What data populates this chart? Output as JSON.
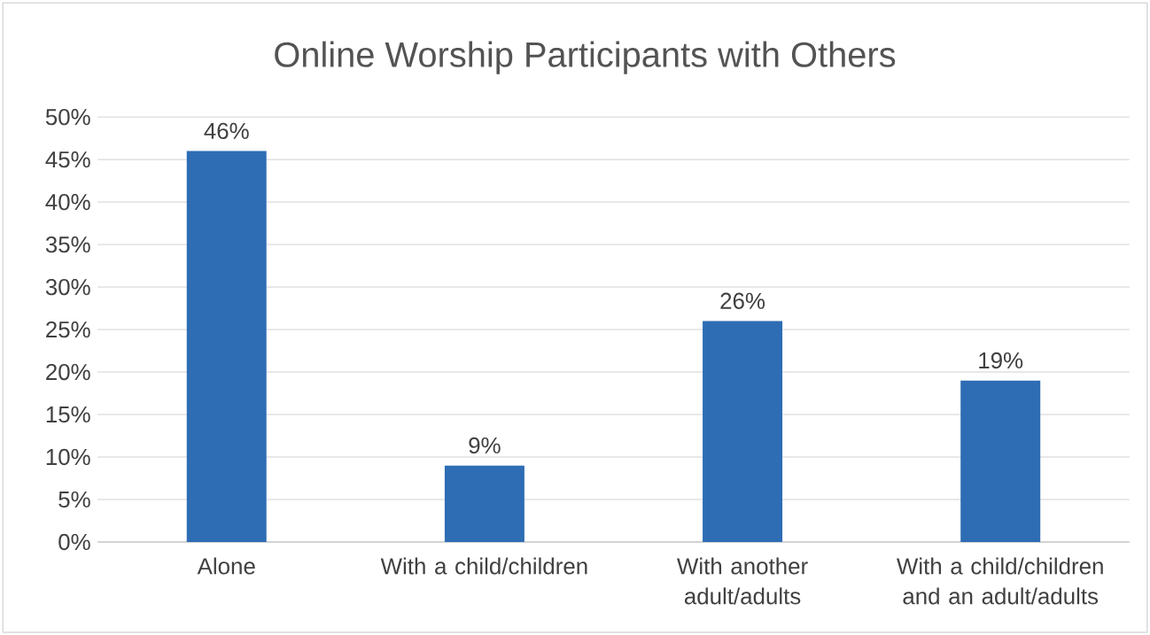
{
  "chart_data": {
    "type": "bar",
    "title": "Online Worship Participants with Others",
    "categories": [
      "Alone",
      "With a child/children",
      "With another adult/adults",
      "With a child/children and an adult/adults"
    ],
    "values": [
      46,
      9,
      26,
      19
    ],
    "value_labels": [
      "46%",
      "9%",
      "26%",
      "19%"
    ],
    "color": "#2e6db4",
    "ylim": [
      0,
      50
    ],
    "yticks": [
      {
        "value": 0,
        "label": "0%"
      },
      {
        "value": 5,
        "label": "5%"
      },
      {
        "value": 10,
        "label": "10%"
      },
      {
        "value": 15,
        "label": "15%"
      },
      {
        "value": 20,
        "label": "20%"
      },
      {
        "value": 25,
        "label": "25%"
      },
      {
        "value": 30,
        "label": "30%"
      },
      {
        "value": 35,
        "label": "35%"
      },
      {
        "value": 40,
        "label": "40%"
      },
      {
        "value": 45,
        "label": "45%"
      },
      {
        "value": 50,
        "label": "50%"
      }
    ],
    "grid": "y"
  }
}
